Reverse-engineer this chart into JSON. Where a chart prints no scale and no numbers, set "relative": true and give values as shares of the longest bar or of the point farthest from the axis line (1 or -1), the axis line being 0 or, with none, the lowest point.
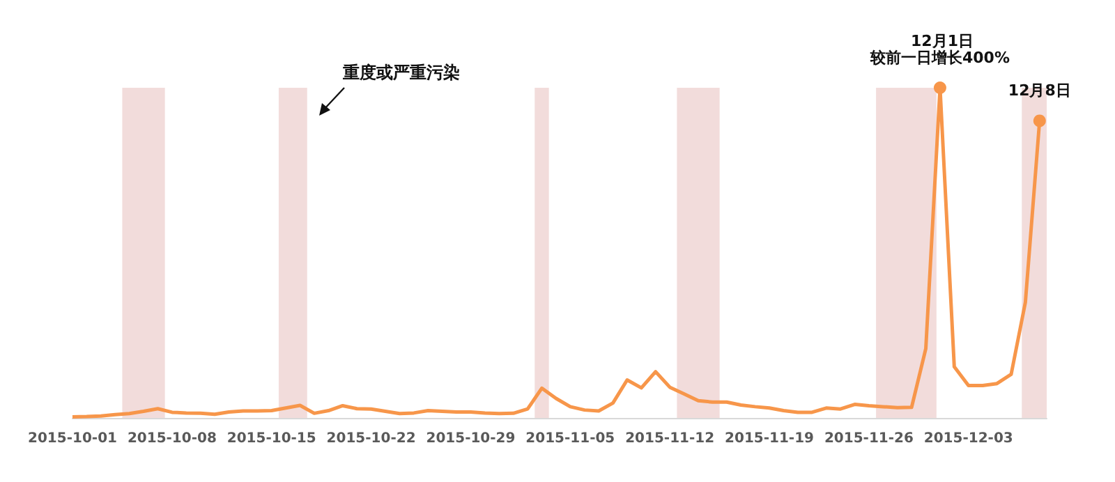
{
  "chart_data": {
    "type": "line",
    "relative": true,
    "tick_labels": "x",
    "grid": false,
    "x": [
      "2015-10-01",
      "2015-10-02",
      "2015-10-03",
      "2015-10-04",
      "2015-10-05",
      "2015-10-06",
      "2015-10-07",
      "2015-10-08",
      "2015-10-09",
      "2015-10-10",
      "2015-10-11",
      "2015-10-12",
      "2015-10-13",
      "2015-10-14",
      "2015-10-15",
      "2015-10-16",
      "2015-10-17",
      "2015-10-18",
      "2015-10-19",
      "2015-10-20",
      "2015-10-21",
      "2015-10-22",
      "2015-10-23",
      "2015-10-24",
      "2015-10-25",
      "2015-10-26",
      "2015-10-27",
      "2015-10-28",
      "2015-10-29",
      "2015-10-30",
      "2015-10-31",
      "2015-11-01",
      "2015-11-02",
      "2015-11-03",
      "2015-11-04",
      "2015-11-05",
      "2015-11-06",
      "2015-11-07",
      "2015-11-08",
      "2015-11-09",
      "2015-11-10",
      "2015-11-11",
      "2015-11-12",
      "2015-11-13",
      "2015-11-14",
      "2015-11-15",
      "2015-11-16",
      "2015-11-17",
      "2015-11-18",
      "2015-11-19",
      "2015-11-20",
      "2015-11-21",
      "2015-11-22",
      "2015-11-23",
      "2015-11-24",
      "2015-11-25",
      "2015-11-26",
      "2015-11-27",
      "2015-11-28",
      "2015-11-29",
      "2015-11-30",
      "2015-12-01",
      "2015-12-02",
      "2015-12-03",
      "2015-12-04",
      "2015-12-05",
      "2015-12-06",
      "2015-12-07",
      "2015-12-08"
    ],
    "series": [
      {
        "color": "#f7964a",
        "values": [
          0.003,
          0.004,
          0.006,
          0.01,
          0.013,
          0.02,
          0.028,
          0.017,
          0.015,
          0.014,
          0.011,
          0.018,
          0.021,
          0.021,
          0.022,
          0.03,
          0.038,
          0.014,
          0.022,
          0.037,
          0.028,
          0.027,
          0.02,
          0.013,
          0.015,
          0.022,
          0.02,
          0.018,
          0.018,
          0.015,
          0.013,
          0.014,
          0.027,
          0.09,
          0.059,
          0.034,
          0.024,
          0.021,
          0.045,
          0.115,
          0.091,
          0.14,
          0.093,
          0.073,
          0.052,
          0.048,
          0.048,
          0.039,
          0.034,
          0.03,
          0.022,
          0.017,
          0.017,
          0.03,
          0.027,
          0.041,
          0.037,
          0.034,
          0.031,
          0.032,
          0.21,
          1,
          0.155,
          0.098,
          0.098,
          0.104,
          0.132,
          0.35,
          0.9
        ]
      }
    ],
    "xlim": [
      "2015-10-01",
      "2015-12-08T12:00"
    ],
    "xticks": [
      "2015-10-01",
      "2015-10-08",
      "2015-10-15",
      "2015-10-22",
      "2015-10-29",
      "2015-11-05",
      "2015-11-12",
      "2015-11-19",
      "2015-11-26",
      "2015-12-03"
    ],
    "bands": [
      {
        "axis": "x",
        "from": "2015-10-04T12:00",
        "to": "2015-10-07T12:00",
        "color": "#f2dcdb"
      },
      {
        "axis": "x",
        "from": "2015-10-15T12:00",
        "to": "2015-10-17T12:00",
        "color": "#f2dcdb"
      },
      {
        "axis": "x",
        "from": "2015-11-02T12:00",
        "to": "2015-11-03T12:00",
        "color": "#f2dcdb"
      },
      {
        "axis": "x",
        "from": "2015-11-12T12:00",
        "to": "2015-11-15T12:00",
        "color": "#f2dcdb"
      },
      {
        "axis": "x",
        "from": "2015-11-26T12:00",
        "to": "2015-11-30T18:00",
        "color": "#f2dcdb"
      },
      {
        "axis": "x",
        "from": "2015-12-06T18:00",
        "to": "2015-12-08T12:00",
        "color": "#f2dcdb"
      }
    ],
    "annotations": [
      "重度或严重污染",
      "12月1日",
      {
        "text": "较前一日增长400%",
        "x": "2015-12-01",
        "y": 1
      },
      {
        "text": "12月8日",
        "x": "2015-12-08",
        "y": 0.9
      }
    ]
  }
}
